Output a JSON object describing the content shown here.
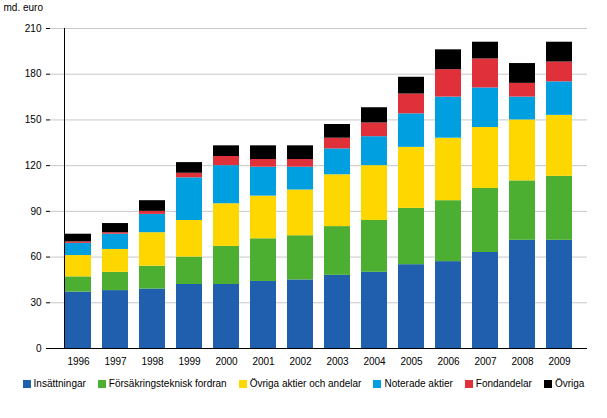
{
  "chart_data": {
    "type": "bar",
    "stacked": true,
    "grid": true,
    "legend": "bottom",
    "y_label": "md. euro",
    "categories": [
      "1996",
      "1997",
      "1998",
      "1999",
      "2000",
      "2001",
      "2002",
      "2003",
      "2004",
      "2005",
      "2006",
      "2007",
      "2008",
      "2009"
    ],
    "ylim": [
      0,
      210
    ],
    "yticks": [
      0,
      30,
      60,
      90,
      120,
      150,
      180,
      210
    ],
    "series": [
      {
        "name": "Insättningar",
        "color": "#1f5fae",
        "values": [
          37,
          38,
          39,
          42,
          42,
          44,
          45,
          48,
          50,
          55,
          57,
          63,
          71,
          71
        ]
      },
      {
        "name": "Försäkringsteknisk fordran",
        "color": "#4caf32",
        "values": [
          10,
          12,
          15,
          18,
          25,
          28,
          29,
          32,
          34,
          37,
          40,
          42,
          39,
          42
        ]
      },
      {
        "name": "Övriga aktier och andelar",
        "color": "#ffd700",
        "values": [
          14,
          15,
          22,
          24,
          28,
          28,
          30,
          34,
          36,
          40,
          41,
          40,
          40,
          40
        ]
      },
      {
        "name": "Noterade aktier",
        "color": "#00a0e0",
        "values": [
          8,
          10,
          12,
          28,
          25,
          19,
          15,
          17,
          19,
          22,
          27,
          26,
          15,
          22
        ]
      },
      {
        "name": "Fondandelar",
        "color": "#e0303a",
        "values": [
          1,
          1,
          2,
          3,
          6,
          5,
          5,
          7,
          9,
          13,
          18,
          19,
          9,
          13
        ]
      },
      {
        "name": "Övriga",
        "color": "#000000",
        "values": [
          5,
          6,
          7,
          7,
          7,
          9,
          9,
          9,
          10,
          11,
          13,
          11,
          13,
          13
        ]
      }
    ]
  }
}
